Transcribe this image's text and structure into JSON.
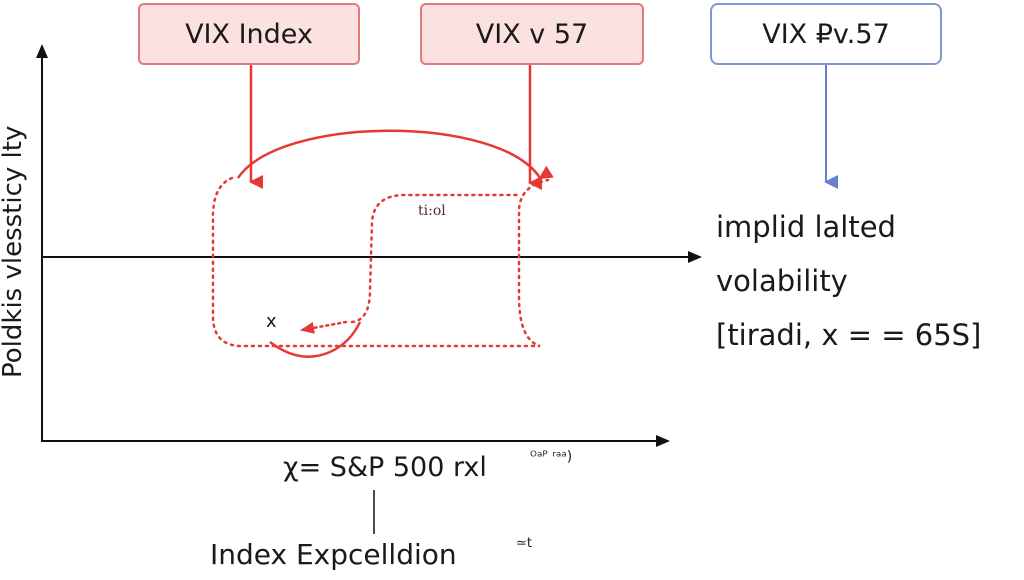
{
  "boxes": [
    {
      "label": "VIX Index"
    },
    {
      "label": "VIX v 57"
    },
    {
      "label": "VIX ₽v.57"
    }
  ],
  "y_axis_label": "Poldkis vlessticy lty",
  "inner_label": "ti:ol",
  "marker_label": "x",
  "side_note": {
    "line1": "implid lalted",
    "line2": "volability",
    "line3": "[tiradi, x = = 65S]"
  },
  "x_axis_label": "χ= S&P 500 rxl",
  "x_axis_superscript": "ᴼᵃᴾ ʳᵃᵃ)",
  "index_expectation": "Index Expcelldion",
  "index_expectation_superscript": "≃t",
  "colors": {
    "red_accent": "#e53935",
    "red_box_fill": "#fce1e1",
    "blue_accent": "#6b7fd1",
    "axis": "#111111"
  }
}
